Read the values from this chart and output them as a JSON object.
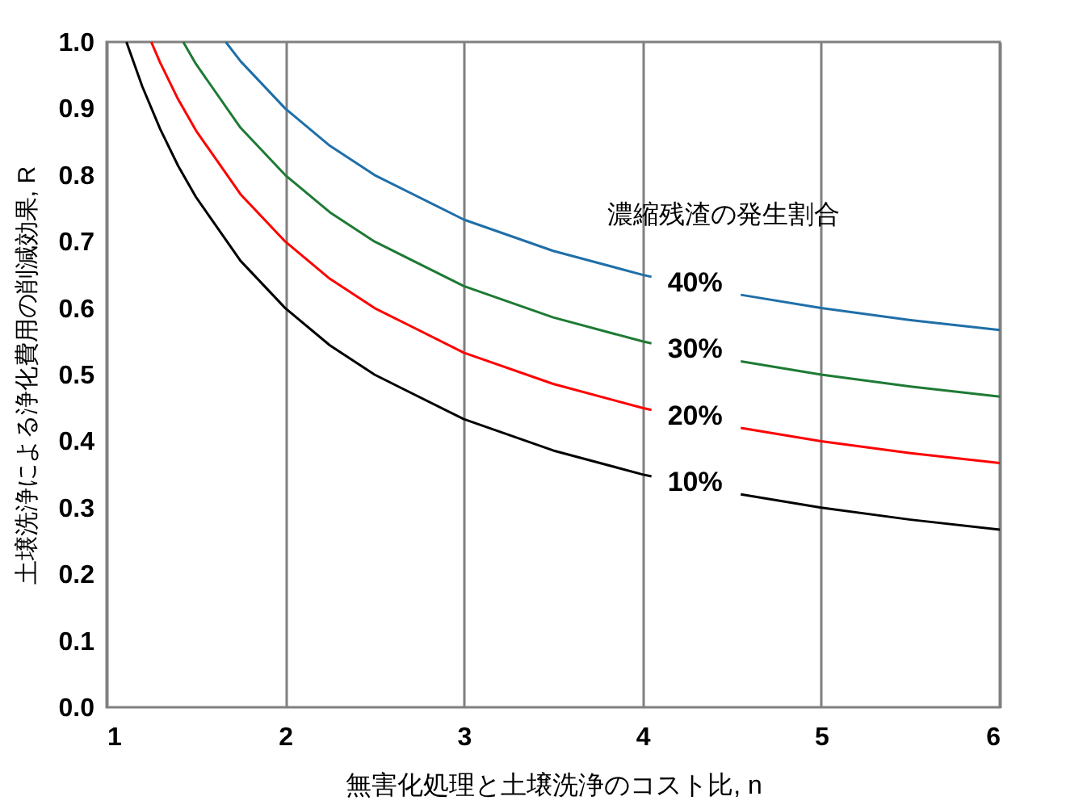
{
  "chart_data": {
    "type": "line",
    "xlabel": "無害化処理と土壌洗浄のコスト比, n",
    "ylabel": "土壌洗浄による浄化費用の削減効果, R",
    "legend_title": "濃縮残渣の発生割合",
    "series": [
      {
        "name": "40%",
        "color": "#1f6fa8",
        "x": [
          1.667,
          1.75,
          2,
          2.25,
          2.5,
          3,
          3.5,
          4,
          4.05,
          4.3,
          4.55,
          5,
          5.5,
          6
        ],
        "values": [
          1.0,
          0.971,
          0.9,
          0.844,
          0.8,
          0.733,
          0.686,
          0.65,
          0.647,
          null,
          0.62,
          0.6,
          0.582,
          0.567
        ]
      },
      {
        "name": "30%",
        "color": "#1e7a35",
        "x": [
          1.429,
          1.5,
          1.75,
          2,
          2.25,
          2.5,
          3,
          3.5,
          4,
          4.05,
          4.3,
          4.55,
          5,
          5.5,
          6
        ],
        "values": [
          1.0,
          0.967,
          0.871,
          0.8,
          0.744,
          0.7,
          0.633,
          0.586,
          0.55,
          0.547,
          null,
          0.52,
          0.5,
          0.482,
          0.467
        ]
      },
      {
        "name": "20%",
        "color": "#ff0000",
        "x": [
          1.25,
          1.3,
          1.4,
          1.5,
          1.75,
          2,
          2.25,
          2.5,
          3,
          3.5,
          4,
          4.05,
          4.3,
          4.55,
          5,
          5.5,
          6
        ],
        "values": [
          1.0,
          0.969,
          0.914,
          0.867,
          0.771,
          0.7,
          0.644,
          0.6,
          0.533,
          0.486,
          0.45,
          0.447,
          null,
          0.42,
          0.4,
          0.382,
          0.367
        ]
      },
      {
        "name": "10%",
        "color": "#000000",
        "x": [
          1.111,
          1.2,
          1.3,
          1.4,
          1.5,
          1.75,
          2,
          2.25,
          2.5,
          3,
          3.5,
          4,
          4.05,
          4.3,
          4.55,
          5,
          5.5,
          6
        ],
        "values": [
          1.0,
          0.933,
          0.869,
          0.814,
          0.767,
          0.671,
          0.6,
          0.544,
          0.5,
          0.433,
          0.386,
          0.35,
          0.347,
          null,
          0.32,
          0.3,
          0.282,
          0.267
        ]
      }
    ],
    "xlim": [
      1,
      6
    ],
    "xticks": [
      1,
      2,
      3,
      4,
      5,
      6
    ],
    "ylim": [
      0,
      1
    ],
    "yticks": [
      {
        "value": 0,
        "label": "0.0"
      },
      {
        "value": 0.1,
        "label": "0.1"
      },
      {
        "value": 0.2,
        "label": "0.2"
      },
      {
        "value": 0.3,
        "label": "0.3"
      },
      {
        "value": 0.4,
        "label": "0.4"
      },
      {
        "value": 0.5,
        "label": "0.5"
      },
      {
        "value": 0.6,
        "label": "0.6"
      },
      {
        "value": 0.7,
        "label": "0.7"
      },
      {
        "value": 0.8,
        "label": "0.8"
      },
      {
        "value": 0.9,
        "label": "0.9"
      },
      {
        "value": 1,
        "label": "1.0"
      }
    ],
    "grid": "x",
    "legend": false,
    "marker": "none",
    "line_style": "solid"
  }
}
